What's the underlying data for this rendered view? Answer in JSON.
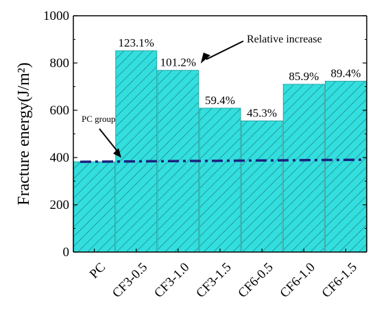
{
  "chart_data": {
    "type": "bar",
    "ylabel": "Fracture energy(J/m²)",
    "ylim": [
      0,
      1000
    ],
    "yticks": [
      0,
      200,
      400,
      600,
      800,
      1000
    ],
    "categories": [
      "PC",
      "CF3-0.5",
      "CF3-1.0",
      "CF3-1.5",
      "CF6-0.5",
      "CF6-1.0",
      "CF6-1.5"
    ],
    "values": [
      382,
      852,
      769,
      609,
      555,
      710,
      723
    ],
    "data_labels": [
      "",
      "123.1%",
      "101.2%",
      "59.4%",
      "45.3%",
      "85.9%",
      "89.4%"
    ],
    "reference_line": {
      "value": 382,
      "style": "dash-dot",
      "color": "#1a237e"
    },
    "bar_fill": "#33dede",
    "bar_hatch": "#1a7a7a",
    "annotations": [
      {
        "text": "Relative increase",
        "points_to": "CF3-1.0"
      },
      {
        "text": "PC group",
        "points_to": "reference_line"
      }
    ],
    "grid": false
  }
}
